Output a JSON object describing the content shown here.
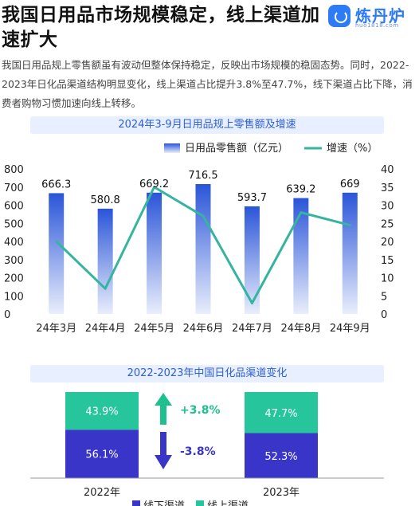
{
  "header": {
    "headline": "我国日用品市场规模稳定，线上渠道加速扩大",
    "logo_name": "炼丹炉",
    "logo_url": "huo1818.com",
    "intro": "我国日用品规上零售额虽有波动但整体保持稳定，反映出市场规模的稳固态势。同时，2022-2023年日化品渠道结构明显变化，线上渠道占比提升3.8%至47.7%，线下渠道占比下降，消费者购物习惯加速向线上转移。"
  },
  "chart_data": [
    {
      "type": "bar",
      "title": "2024年3-9月日用品规上零售额及增速",
      "categories": [
        "24年3月",
        "24年4月",
        "24年5月",
        "24年6月",
        "24年7月",
        "24年8月",
        "24年9月"
      ],
      "series": [
        {
          "name": "日用品零售额（亿元）",
          "type": "bar",
          "axis": "left",
          "values": [
            666.3,
            580.8,
            669.2,
            716.5,
            593.7,
            639.2,
            669
          ],
          "labels": [
            "666.3",
            "580.8",
            "669.2",
            "716.5",
            "593.7",
            "639.2",
            "669"
          ]
        },
        {
          "name": "增速（%）",
          "type": "line",
          "axis": "right",
          "values": [
            20,
            7,
            35,
            27,
            3,
            28,
            24.5
          ]
        }
      ],
      "ylim_left": [
        0,
        800
      ],
      "yticks_left": [
        0,
        100,
        200,
        300,
        400,
        500,
        600,
        700,
        800
      ],
      "ylim_right": [
        0,
        40
      ],
      "yticks_right": [
        0,
        5,
        10,
        15,
        20,
        25,
        30,
        35,
        40
      ],
      "legend_position": "top",
      "grid": false,
      "colors": {
        "bar_top": "#2a55d8",
        "bar_bottom": "#e9eefc",
        "line": "#35b4a0"
      }
    },
    {
      "type": "bar",
      "stacked": true,
      "percent": true,
      "title": "2022-2023年中国日化品渠道变化",
      "categories": [
        "2022年",
        "2023年"
      ],
      "series": [
        {
          "name": "线下渠道",
          "values": [
            56.1,
            52.3
          ],
          "labels": [
            "56.1%",
            "52.3%"
          ],
          "color": "#3a35c9"
        },
        {
          "name": "线上渠道",
          "values": [
            43.9,
            47.7
          ],
          "labels": [
            "43.9%",
            "47.7%"
          ],
          "color": "#27c59c"
        }
      ],
      "annotations": [
        {
          "text": "+3.8%",
          "direction": "up",
          "color": "#1fbf8f"
        },
        {
          "text": "-3.8%",
          "direction": "down",
          "color": "#3a35c9"
        }
      ],
      "legend_position": "bottom"
    }
  ]
}
